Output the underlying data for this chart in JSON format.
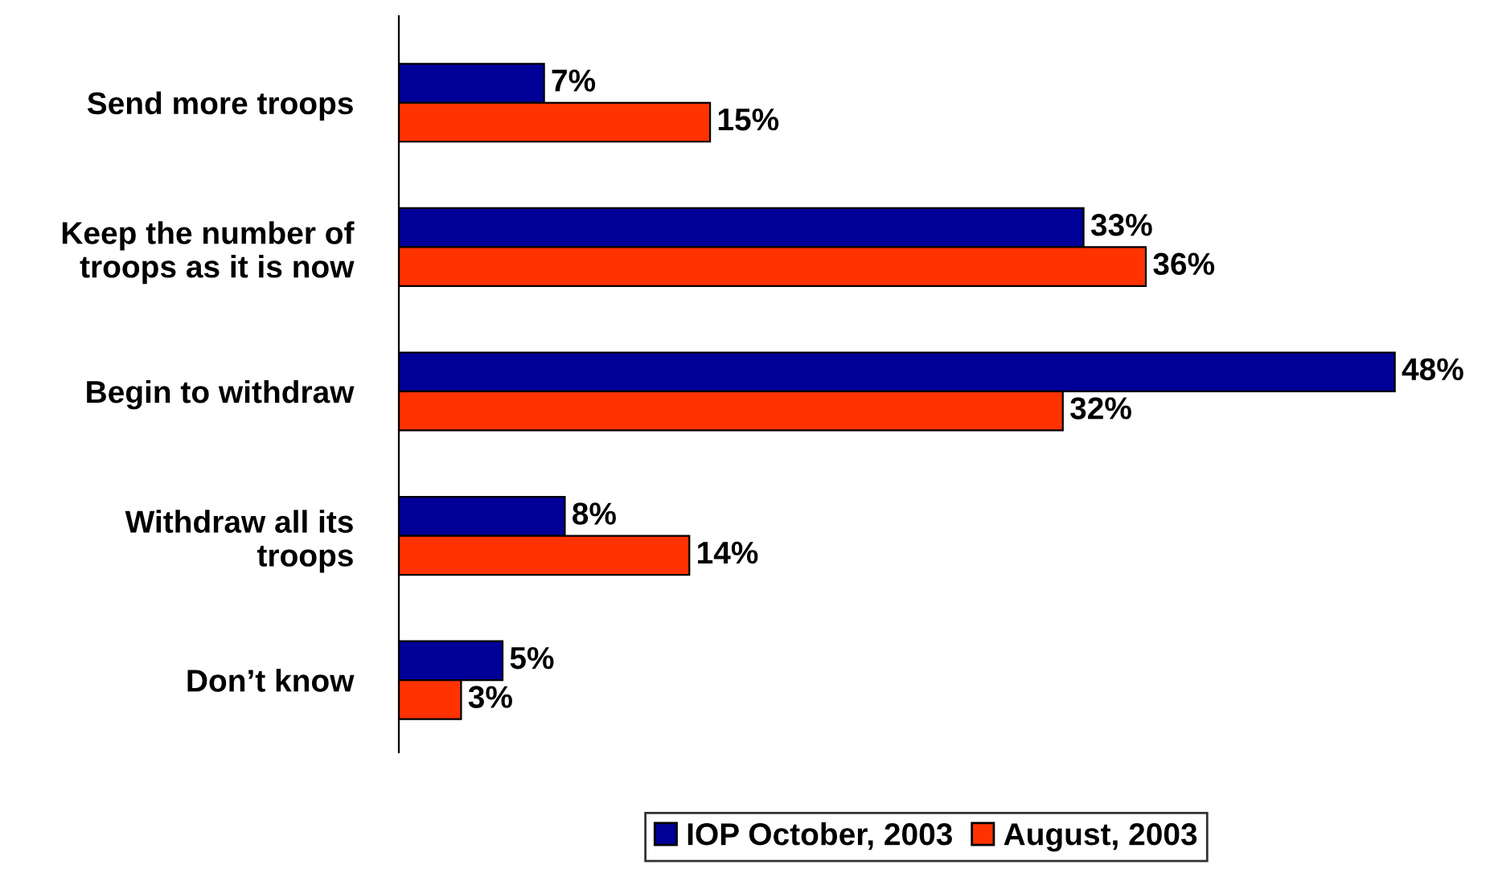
{
  "chart_data": {
    "type": "bar",
    "orientation": "horizontal",
    "categories": [
      "Send more troops",
      "Keep the number of\ntroops as it is now",
      "Begin to withdraw",
      "Withdraw all its\ntroops",
      "Don’t know"
    ],
    "series": [
      {
        "name": "IOP October, 2003",
        "color": "#000099",
        "values": [
          7,
          33,
          48,
          8,
          5
        ],
        "value_labels": [
          "7%",
          "33%",
          "48%",
          "8%",
          "5%"
        ]
      },
      {
        "name": "August, 2003",
        "color": "#ff3300",
        "values": [
          15,
          36,
          32,
          14,
          3
        ],
        "value_labels": [
          "15%",
          "36%",
          "32%",
          "14%",
          "3%"
        ]
      }
    ],
    "legend": "bottom",
    "grid": false
  }
}
